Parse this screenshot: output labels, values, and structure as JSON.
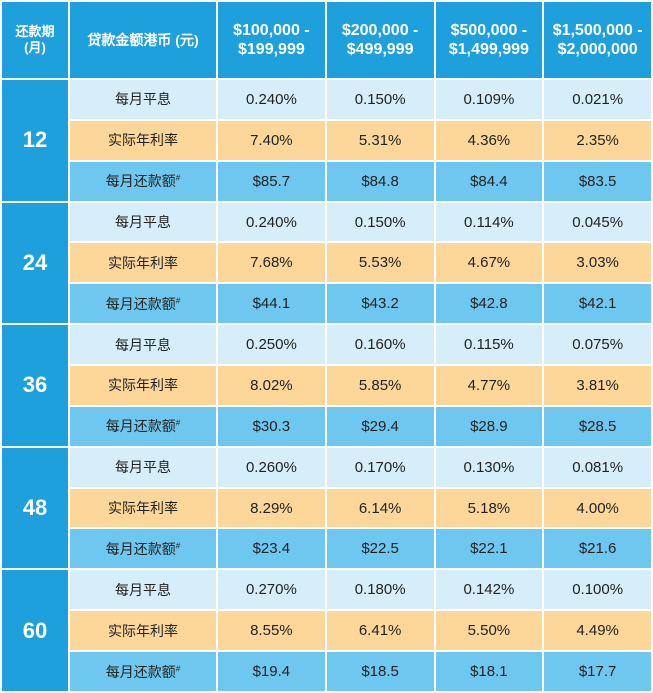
{
  "header": {
    "term_line1": "还款期",
    "term_line2": "(月)",
    "item": "贷款金额港币 (元)",
    "bands": [
      {
        "line1": "$100,000 -",
        "line2": "$199,999"
      },
      {
        "line1": "$200,000 -",
        "line2": "$499,999"
      },
      {
        "line1": "$500,000 -",
        "line2": "$1,499,999"
      },
      {
        "line1": "$1,500,000 -",
        "line2": "$2,000,000"
      }
    ]
  },
  "row_labels": {
    "monthly_rate": "每月平息",
    "effective_rate": "实际年利率",
    "repayment": "每月还款额",
    "repayment_mark": "#"
  },
  "groups": [
    {
      "term": "12",
      "monthly_rate": [
        "0.240%",
        "0.150%",
        "0.109%",
        "0.021%"
      ],
      "effective_rate": [
        "7.40%",
        "5.31%",
        "4.36%",
        "2.35%"
      ],
      "repayment": [
        "$85.7",
        "$84.8",
        "$84.4",
        "$83.5"
      ]
    },
    {
      "term": "24",
      "monthly_rate": [
        "0.240%",
        "0.150%",
        "0.114%",
        "0.045%"
      ],
      "effective_rate": [
        "7.68%",
        "5.53%",
        "4.67%",
        "3.03%"
      ],
      "repayment": [
        "$44.1",
        "$43.2",
        "$42.8",
        "$42.1"
      ]
    },
    {
      "term": "36",
      "monthly_rate": [
        "0.250%",
        "0.160%",
        "0.115%",
        "0.075%"
      ],
      "effective_rate": [
        "8.02%",
        "5.85%",
        "4.77%",
        "3.81%"
      ],
      "repayment": [
        "$30.3",
        "$29.4",
        "$28.9",
        "$28.5"
      ]
    },
    {
      "term": "48",
      "monthly_rate": [
        "0.260%",
        "0.170%",
        "0.130%",
        "0.081%"
      ],
      "effective_rate": [
        "8.29%",
        "6.14%",
        "5.18%",
        "4.00%"
      ],
      "repayment": [
        "$23.4",
        "$22.5",
        "$22.1",
        "$21.6"
      ]
    },
    {
      "term": "60",
      "monthly_rate": [
        "0.270%",
        "0.180%",
        "0.142%",
        "0.100%"
      ],
      "effective_rate": [
        "8.55%",
        "6.41%",
        "5.50%",
        "4.49%"
      ],
      "repayment": [
        "$19.4",
        "$18.5",
        "$18.1",
        "$17.7"
      ]
    }
  ],
  "colors": {
    "header_blue": "#1ea0dc",
    "monthly_rate_bg": "#d6eefa",
    "effective_rate_bg": "#fdd79a",
    "repayment_bg": "#6ec7ef"
  }
}
